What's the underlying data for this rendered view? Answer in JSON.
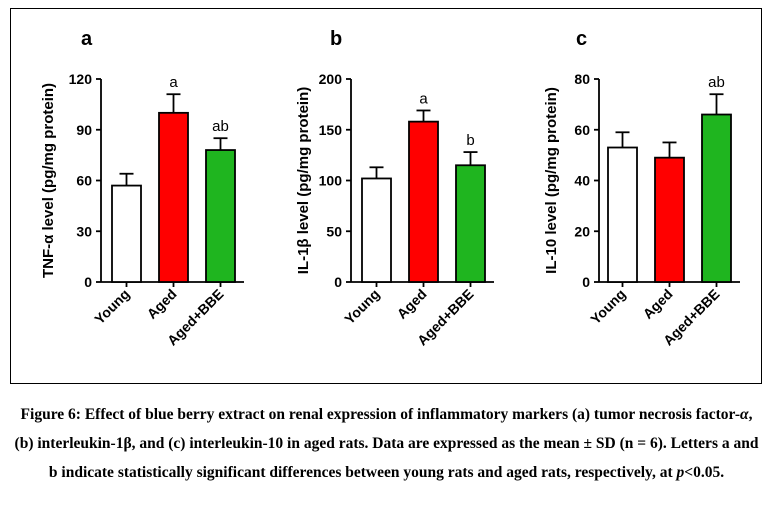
{
  "chart_data": [
    {
      "type": "bar",
      "panel": "a",
      "categories": [
        "Young",
        "Aged",
        "Aged+BBE"
      ],
      "values": [
        57,
        100,
        78
      ],
      "errors": [
        7,
        11,
        7
      ],
      "significance": [
        "",
        "a",
        "ab"
      ],
      "yticks": [
        "0",
        "30",
        "60",
        "90",
        "120"
      ],
      "ylim": [
        0,
        120
      ],
      "ylabel": "TNF-α level (pg/mg protein)",
      "colors": [
        "#ffffff",
        "#ff0000",
        "#1fb51f"
      ]
    },
    {
      "type": "bar",
      "panel": "b",
      "categories": [
        "Young",
        "Aged",
        "Aged+BBE"
      ],
      "values": [
        102,
        158,
        115
      ],
      "errors": [
        11,
        11,
        13
      ],
      "significance": [
        "",
        "a",
        "b"
      ],
      "yticks": [
        "0",
        "50",
        "100",
        "150",
        "200"
      ],
      "ylim": [
        0,
        200
      ],
      "ylabel": "IL-1β level (pg/mg protein)",
      "colors": [
        "#ffffff",
        "#ff0000",
        "#1fb51f"
      ]
    },
    {
      "type": "bar",
      "panel": "c",
      "categories": [
        "Young",
        "Aged",
        "Aged+BBE"
      ],
      "values": [
        53,
        49,
        66
      ],
      "errors": [
        6,
        6,
        8
      ],
      "significance": [
        "",
        "",
        "ab"
      ],
      "yticks": [
        "0",
        "20",
        "40",
        "60",
        "80"
      ],
      "ylim": [
        0,
        80
      ],
      "ylabel": "IL-10 level (pg/mg protein)",
      "colors": [
        "#ffffff",
        "#ff0000",
        "#1fb51f"
      ]
    }
  ],
  "caption": {
    "part1": "Figure 6: Effect of blue berry extract on renal expression of inflammatory markers (a) tumor necrosis factor-",
    "alpha": "α",
    "part2": ", (b) interleukin-1β, and (c) interleukin-10 in aged rats. Data are expressed as the mean ± SD (n = 6). Letters a and b indicate statistically significant differences between young rats and aged rats, respectively, at ",
    "p": "p",
    "part3": "<0.05."
  }
}
